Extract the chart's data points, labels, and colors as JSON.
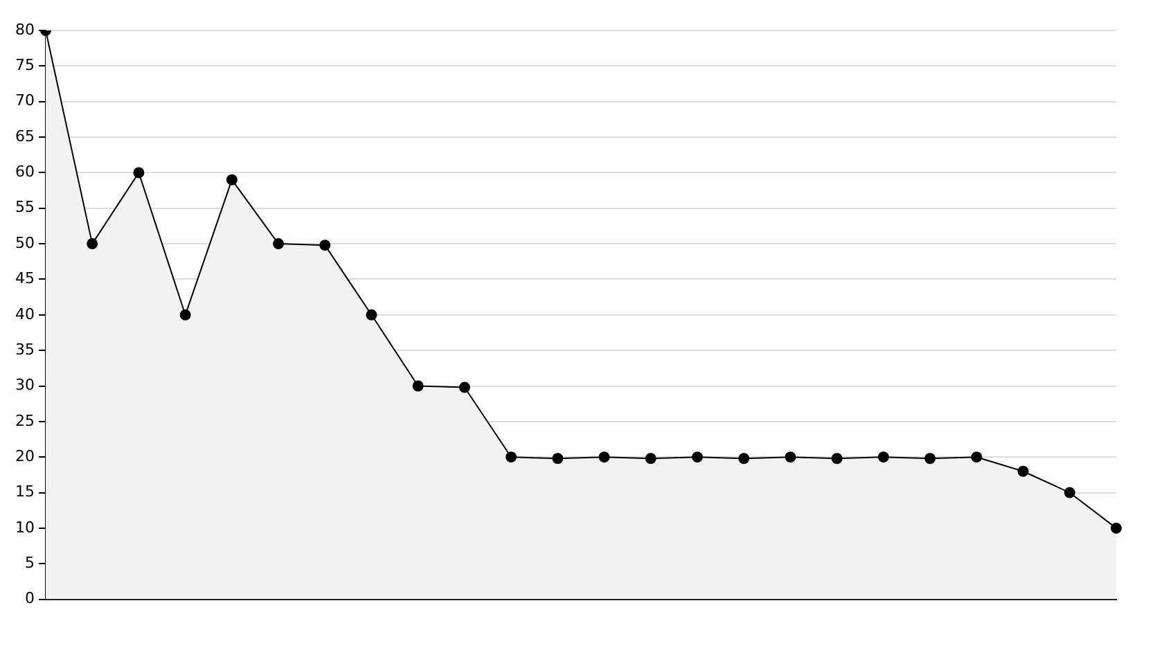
{
  "chart_data": {
    "type": "area",
    "categories": [
      null,
      null,
      null,
      null,
      null,
      null,
      null,
      null,
      null,
      null,
      null,
      null,
      null,
      null,
      null,
      null,
      null,
      null,
      null,
      null,
      null,
      null,
      null,
      null
    ],
    "series": [
      {
        "color": "#000000",
        "values": [
          80,
          50,
          60,
          40,
          59,
          50,
          49.8,
          40,
          30,
          29.8,
          20,
          19.8,
          20,
          19.8,
          20,
          19.8,
          20,
          19.8,
          20,
          19.8,
          20,
          18,
          15,
          10
        ]
      }
    ],
    "ylim": [
      0,
      80
    ],
    "yticks": [
      0,
      5,
      10,
      15,
      20,
      25,
      30,
      35,
      40,
      45,
      50,
      55,
      60,
      65,
      70,
      75,
      80
    ],
    "grid": "y",
    "legend": false,
    "marker": "circle",
    "line_style": "solid"
  }
}
